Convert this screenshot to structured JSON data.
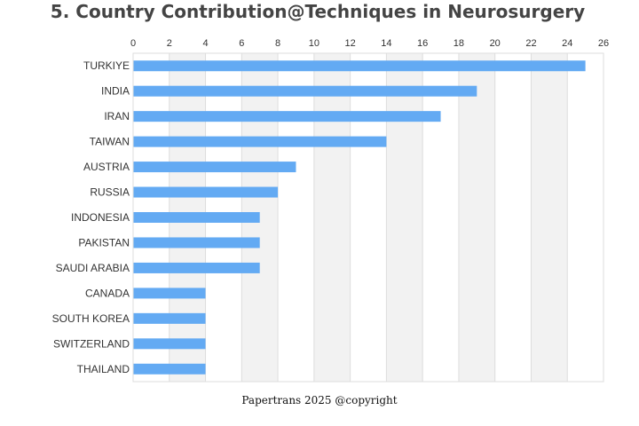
{
  "chart_data": {
    "type": "bar",
    "orientation": "horizontal",
    "title": "5. Country Contribution@Techniques in Neurosurgery",
    "categories": [
      "TURKIYE",
      "INDIA",
      "IRAN",
      "TAIWAN",
      "AUSTRIA",
      "RUSSIA",
      "INDONESIA",
      "PAKISTAN",
      "SAUDI ARABIA",
      "CANADA",
      "SOUTH KOREA",
      "SWITZERLAND",
      "THAILAND"
    ],
    "values": [
      25,
      19,
      17,
      14,
      9,
      8,
      7,
      7,
      7,
      4,
      4,
      4,
      4
    ],
    "xlim": [
      0,
      26
    ],
    "xticks": [
      0,
      2,
      4,
      6,
      8,
      10,
      12,
      14,
      16,
      18,
      20,
      22,
      24,
      26
    ],
    "x_axis_position": "top",
    "grid": "alternating vertical bands",
    "xlabel": "",
    "ylabel": "",
    "bar_color": "#63aaf3",
    "band_color": "#f2f2f2",
    "gridline_color": "#dddddd"
  },
  "footer": "Papertrans 2025 @copyright"
}
